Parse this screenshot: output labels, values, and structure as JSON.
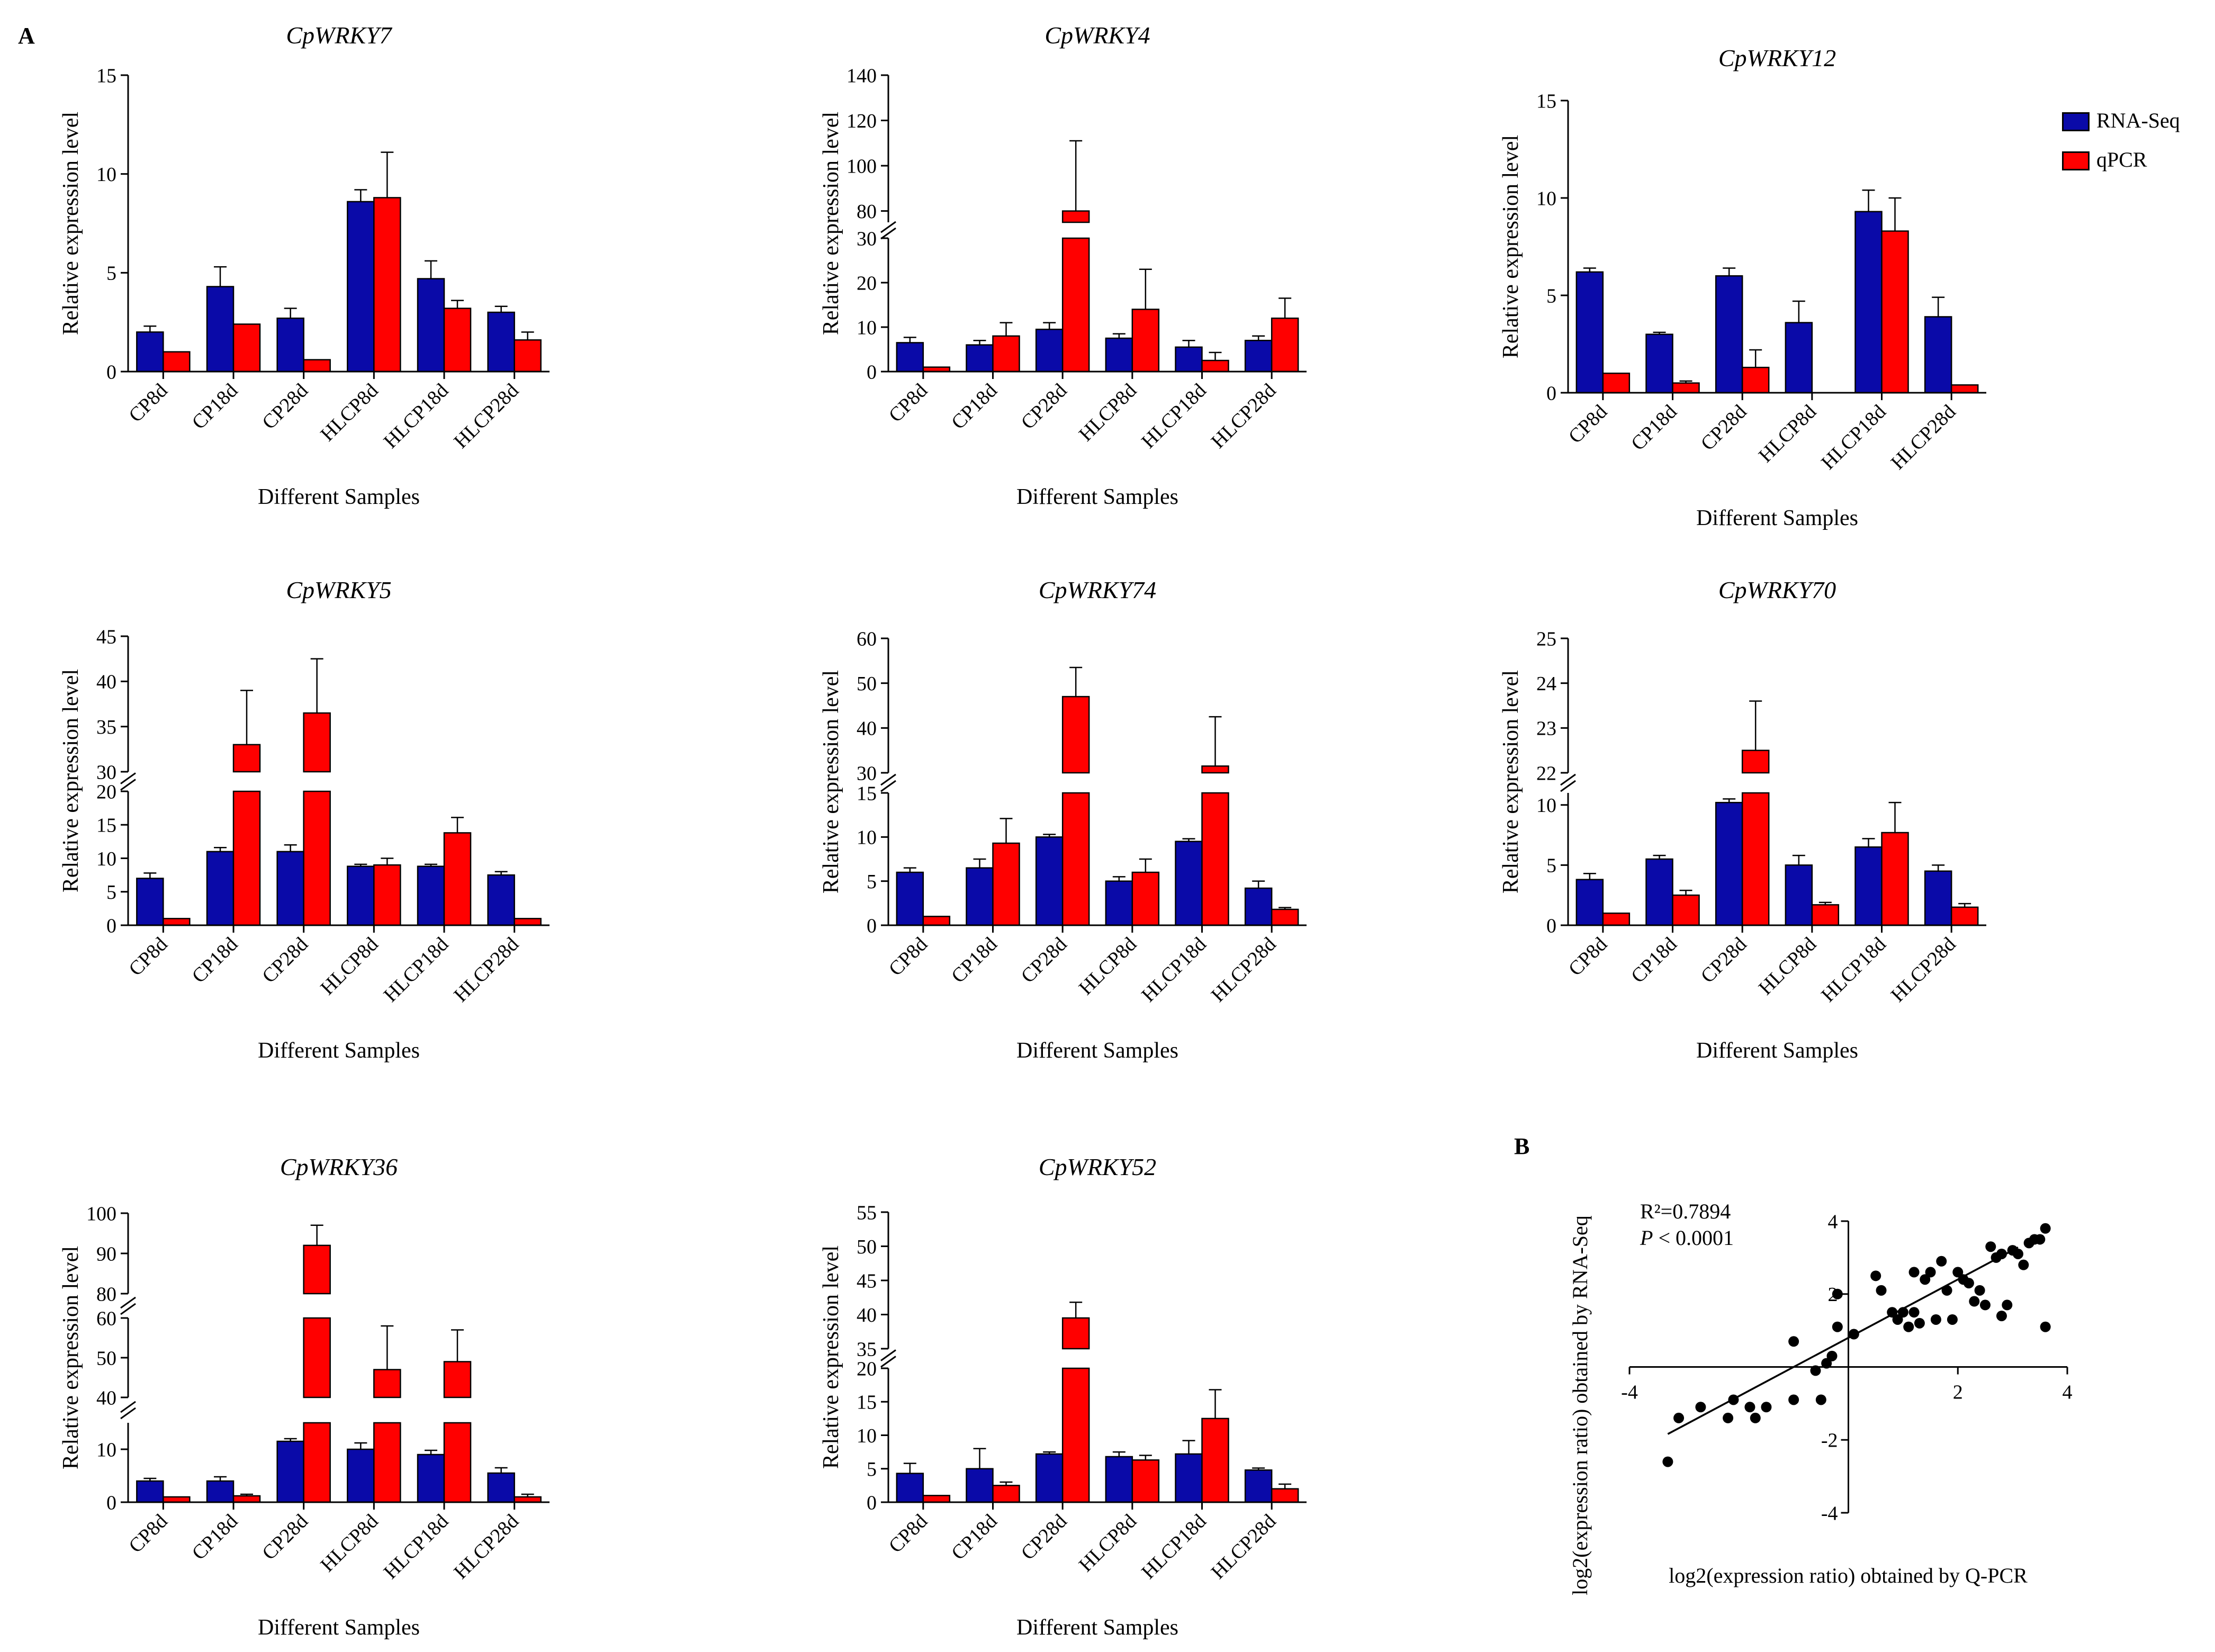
{
  "figure": {
    "panel_a_label": "A",
    "panel_b_label": "B",
    "legend": [
      {
        "name": "RNA-Seq",
        "color": "#0a0aa8"
      },
      {
        "name": "qPCR",
        "color": "#ff0000"
      }
    ]
  },
  "chart_data": [
    {
      "type": "bar",
      "title": "CpWRKY7",
      "xlabel": "Different Samples",
      "ylabel": "Relative expression level",
      "categories": [
        "CP8d",
        "CP18d",
        "CP28d",
        "HLCP8d",
        "HLCP18d",
        "HLCP28d"
      ],
      "series": [
        {
          "name": "RNA-Seq",
          "values": [
            2.0,
            4.3,
            2.7,
            8.6,
            4.7,
            3.0
          ],
          "errors": [
            0.3,
            1.0,
            0.5,
            0.6,
            0.9,
            0.3
          ]
        },
        {
          "name": "qPCR",
          "values": [
            1.0,
            2.4,
            0.6,
            8.8,
            3.2,
            1.6
          ],
          "errors": [
            0.0,
            0.0,
            0.0,
            2.3,
            0.4,
            0.4
          ]
        }
      ],
      "ylim": [
        0,
        15
      ],
      "yticks": [
        "0",
        "5",
        "10",
        "15"
      ]
    },
    {
      "type": "bar",
      "title": "CpWRKY4",
      "xlabel": "Different Samples",
      "ylabel": "Relative expression level",
      "categories": [
        "CP8d",
        "CP18d",
        "CP28d",
        "HLCP8d",
        "HLCP18d",
        "HLCP28d"
      ],
      "series": [
        {
          "name": "RNA-Seq",
          "values": [
            6.5,
            6.0,
            9.5,
            7.5,
            5.5,
            7.0
          ],
          "errors": [
            1.2,
            1.0,
            1.5,
            1.0,
            1.5,
            1.0
          ]
        },
        {
          "name": "qPCR",
          "values": [
            1.0,
            8.0,
            80.0,
            14.0,
            2.5,
            12.0
          ],
          "errors": [
            0.0,
            3.0,
            31.0,
            9.0,
            1.8,
            4.5
          ]
        }
      ],
      "y_break": [
        30,
        75
      ],
      "ylim": [
        0,
        140
      ],
      "yticks": [
        "0",
        "10",
        "20",
        "30",
        "80",
        "100",
        "120",
        "140"
      ]
    },
    {
      "type": "bar",
      "title": "CpWRKY12",
      "xlabel": "Different Samples",
      "ylabel": "Relative expression level",
      "categories": [
        "CP8d",
        "CP18d",
        "CP28d",
        "HLCP8d",
        "HLCP18d",
        "HLCP28d"
      ],
      "series": [
        {
          "name": "RNA-Seq",
          "values": [
            6.2,
            3.0,
            6.0,
            3.6,
            9.3,
            3.9
          ],
          "errors": [
            0.2,
            0.1,
            0.4,
            1.1,
            1.1,
            1.0
          ]
        },
        {
          "name": "qPCR",
          "values": [
            1.0,
            0.5,
            1.3,
            0.0,
            8.3,
            0.4
          ],
          "errors": [
            0.0,
            0.1,
            0.9,
            0.0,
            1.7,
            0.0
          ]
        }
      ],
      "ylim": [
        0,
        15
      ],
      "yticks": [
        "0",
        "5",
        "10",
        "15"
      ]
    },
    {
      "type": "bar",
      "title": "CpWRKY5",
      "xlabel": "Different Samples",
      "ylabel": "Relative expression level",
      "categories": [
        "CP8d",
        "CP18d",
        "CP28d",
        "HLCP8d",
        "HLCP18d",
        "HLCP28d"
      ],
      "series": [
        {
          "name": "RNA-Seq",
          "values": [
            7.0,
            11.0,
            11.0,
            8.8,
            8.8,
            7.5
          ],
          "errors": [
            0.8,
            0.6,
            1.0,
            0.3,
            0.3,
            0.5
          ]
        },
        {
          "name": "qPCR",
          "values": [
            1.0,
            33.0,
            36.5,
            9.0,
            13.8,
            1.0
          ],
          "errors": [
            0.0,
            6.0,
            6.0,
            1.0,
            2.3,
            0.0
          ]
        }
      ],
      "y_break": [
        20,
        30
      ],
      "ylim": [
        0,
        45
      ],
      "yticks": [
        "0",
        "5",
        "10",
        "15",
        "20",
        "30",
        "35",
        "40",
        "45"
      ]
    },
    {
      "type": "bar",
      "title": "CpWRKY74",
      "xlabel": "Different Samples",
      "ylabel": "Relative expression level",
      "categories": [
        "CP8d",
        "CP18d",
        "CP28d",
        "HLCP8d",
        "HLCP18d",
        "HLCP28d"
      ],
      "series": [
        {
          "name": "RNA-Seq",
          "values": [
            6.0,
            6.5,
            10.0,
            5.0,
            9.5,
            4.2
          ],
          "errors": [
            0.5,
            1.0,
            0.3,
            0.5,
            0.3,
            0.8
          ]
        },
        {
          "name": "qPCR",
          "values": [
            1.0,
            9.3,
            47.0,
            6.0,
            31.5,
            1.8
          ],
          "errors": [
            0.0,
            2.8,
            6.5,
            1.5,
            11.0,
            0.2
          ]
        }
      ],
      "y_break": [
        15,
        30
      ],
      "ylim": [
        0,
        60
      ],
      "yticks": [
        "0",
        "5",
        "10",
        "15",
        "30",
        "40",
        "50",
        "60"
      ]
    },
    {
      "type": "bar",
      "title": "CpWRKY70",
      "xlabel": "Different Samples",
      "ylabel": "Relative expression level",
      "categories": [
        "CP8d",
        "CP18d",
        "CP28d",
        "HLCP8d",
        "HLCP18d",
        "HLCP28d"
      ],
      "series": [
        {
          "name": "RNA-Seq",
          "values": [
            3.8,
            5.5,
            10.2,
            5.0,
            6.5,
            4.5
          ],
          "errors": [
            0.5,
            0.3,
            0.3,
            0.8,
            0.7,
            0.5
          ]
        },
        {
          "name": "qPCR",
          "values": [
            1.0,
            2.5,
            22.5,
            1.7,
            7.7,
            1.5
          ],
          "errors": [
            0.0,
            0.4,
            1.1,
            0.2,
            2.5,
            0.3
          ]
        }
      ],
      "y_break": [
        11,
        22
      ],
      "ylim": [
        0,
        25
      ],
      "yticks": [
        "0",
        "5",
        "10",
        "22",
        "23",
        "24",
        "25"
      ]
    },
    {
      "type": "bar",
      "title": "CpWRKY36",
      "xlabel": "Different Samples",
      "ylabel": "Relative expression level",
      "categories": [
        "CP8d",
        "CP18d",
        "CP28d",
        "HLCP8d",
        "HLCP18d",
        "HLCP28d"
      ],
      "series": [
        {
          "name": "RNA-Seq",
          "values": [
            4.0,
            4.0,
            11.5,
            10.0,
            9.0,
            5.5
          ],
          "errors": [
            0.5,
            0.8,
            0.5,
            1.2,
            0.8,
            1.0
          ]
        },
        {
          "name": "qPCR",
          "values": [
            1.0,
            1.2,
            92.0,
            47.0,
            49.0,
            1.0
          ],
          "errors": [
            0.0,
            0.3,
            5.0,
            11.0,
            8.0,
            0.5
          ]
        }
      ],
      "y_break_lower": [
        15,
        40
      ],
      "y_break_upper": [
        60,
        80
      ],
      "ylim": [
        0,
        100
      ],
      "yticks": [
        "0",
        "10",
        "40",
        "50",
        "60",
        "80",
        "90",
        "100"
      ]
    },
    {
      "type": "bar",
      "title": "CpWRKY52",
      "xlabel": "Different Samples",
      "ylabel": "Relative expression level",
      "categories": [
        "CP8d",
        "CP18d",
        "CP28d",
        "HLCP8d",
        "HLCP18d",
        "HLCP28d"
      ],
      "series": [
        {
          "name": "RNA-Seq",
          "values": [
            4.3,
            5.0,
            7.2,
            6.8,
            7.2,
            4.8
          ],
          "errors": [
            1.5,
            3.0,
            0.3,
            0.7,
            2.0,
            0.3
          ]
        },
        {
          "name": "qPCR",
          "values": [
            1.0,
            2.5,
            39.5,
            6.3,
            12.5,
            2.0
          ],
          "errors": [
            0.0,
            0.5,
            2.3,
            0.7,
            4.3,
            0.7
          ]
        }
      ],
      "y_break": [
        20,
        35
      ],
      "ylim": [
        0,
        55
      ],
      "yticks": [
        "0",
        "5",
        "10",
        "15",
        "20",
        "35",
        "40",
        "45",
        "50",
        "55"
      ]
    },
    {
      "type": "scatter",
      "title": "",
      "xlabel": "log2(expression ratio) obtained by Q-PCR",
      "ylabel": "log2(expression ratio) obtained by RNA-Seq",
      "xlim": [
        -4,
        4
      ],
      "ylim": [
        -4,
        4
      ],
      "xticks": [
        "-4",
        "2",
        "4"
      ],
      "yticks": [
        "4",
        "2",
        "-2",
        "-4"
      ],
      "annotation_r2": "R²=0.7894",
      "annotation_p_symbol": "P",
      "annotation_p_value": "< 0.0001",
      "regression": {
        "slope": 0.8,
        "intercept": 0.8,
        "x_range": [
          -3.3,
          3.1
        ]
      },
      "points": [
        [
          -3.3,
          -2.6
        ],
        [
          -3.1,
          -1.4
        ],
        [
          -2.7,
          -1.1
        ],
        [
          -2.2,
          -1.4
        ],
        [
          -2.1,
          -0.9
        ],
        [
          -1.8,
          -1.1
        ],
        [
          -1.7,
          -1.4
        ],
        [
          -1.5,
          -1.1
        ],
        [
          -1.0,
          0.7
        ],
        [
          -1.0,
          -0.9
        ],
        [
          -0.6,
          -0.1
        ],
        [
          -0.5,
          -0.9
        ],
        [
          -0.4,
          0.1
        ],
        [
          -0.3,
          0.3
        ],
        [
          -0.2,
          1.1
        ],
        [
          -0.2,
          2.0
        ],
        [
          0.1,
          0.9
        ],
        [
          0.5,
          2.5
        ],
        [
          0.6,
          2.1
        ],
        [
          0.8,
          1.5
        ],
        [
          0.9,
          1.3
        ],
        [
          1.0,
          1.5
        ],
        [
          1.1,
          1.1
        ],
        [
          1.2,
          2.6
        ],
        [
          1.2,
          1.5
        ],
        [
          1.3,
          1.2
        ],
        [
          1.4,
          2.4
        ],
        [
          1.5,
          2.6
        ],
        [
          1.6,
          1.3
        ],
        [
          1.7,
          2.9
        ],
        [
          1.8,
          2.1
        ],
        [
          1.9,
          1.3
        ],
        [
          2.0,
          2.6
        ],
        [
          2.1,
          2.4
        ],
        [
          2.2,
          2.3
        ],
        [
          2.3,
          1.8
        ],
        [
          2.4,
          2.1
        ],
        [
          2.5,
          1.7
        ],
        [
          2.6,
          3.3
        ],
        [
          2.7,
          3.0
        ],
        [
          2.8,
          3.1
        ],
        [
          2.8,
          1.4
        ],
        [
          2.9,
          1.7
        ],
        [
          3.0,
          3.2
        ],
        [
          3.1,
          3.1
        ],
        [
          3.2,
          2.8
        ],
        [
          3.3,
          3.4
        ],
        [
          3.4,
          3.5
        ],
        [
          3.5,
          3.5
        ],
        [
          3.6,
          3.8
        ],
        [
          3.6,
          1.1
        ]
      ]
    }
  ]
}
